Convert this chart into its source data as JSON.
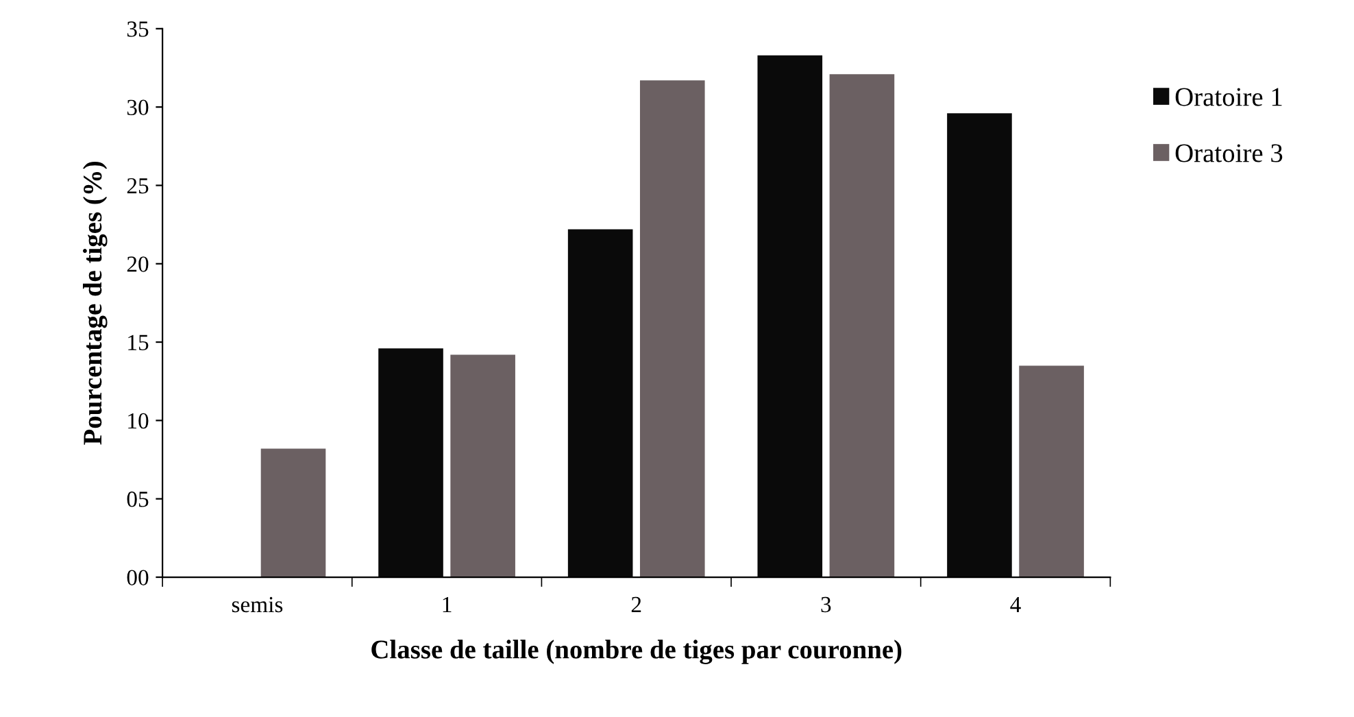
{
  "chart_data": {
    "type": "bar",
    "xlabel": "Classe de taille (nombre de tiges par couronne)",
    "ylabel": "Pourcentage de tiges (%)",
    "categories": [
      "semis",
      "1",
      "2",
      "3",
      "4"
    ],
    "series": [
      {
        "name": "Oratoire 1",
        "color": "#0a0a0a",
        "values": [
          null,
          14.6,
          22.2,
          33.3,
          29.6
        ]
      },
      {
        "name": "Oratoire 3",
        "color": "#6b6062",
        "values": [
          8.2,
          14.2,
          31.7,
          32.1,
          13.5
        ]
      }
    ],
    "ylim": [
      0,
      35
    ],
    "yticks": [
      {
        "value": 0,
        "label": "00"
      },
      {
        "value": 5,
        "label": "05"
      },
      10,
      15,
      20,
      25,
      30,
      35
    ],
    "grid": false,
    "legend": "right"
  }
}
